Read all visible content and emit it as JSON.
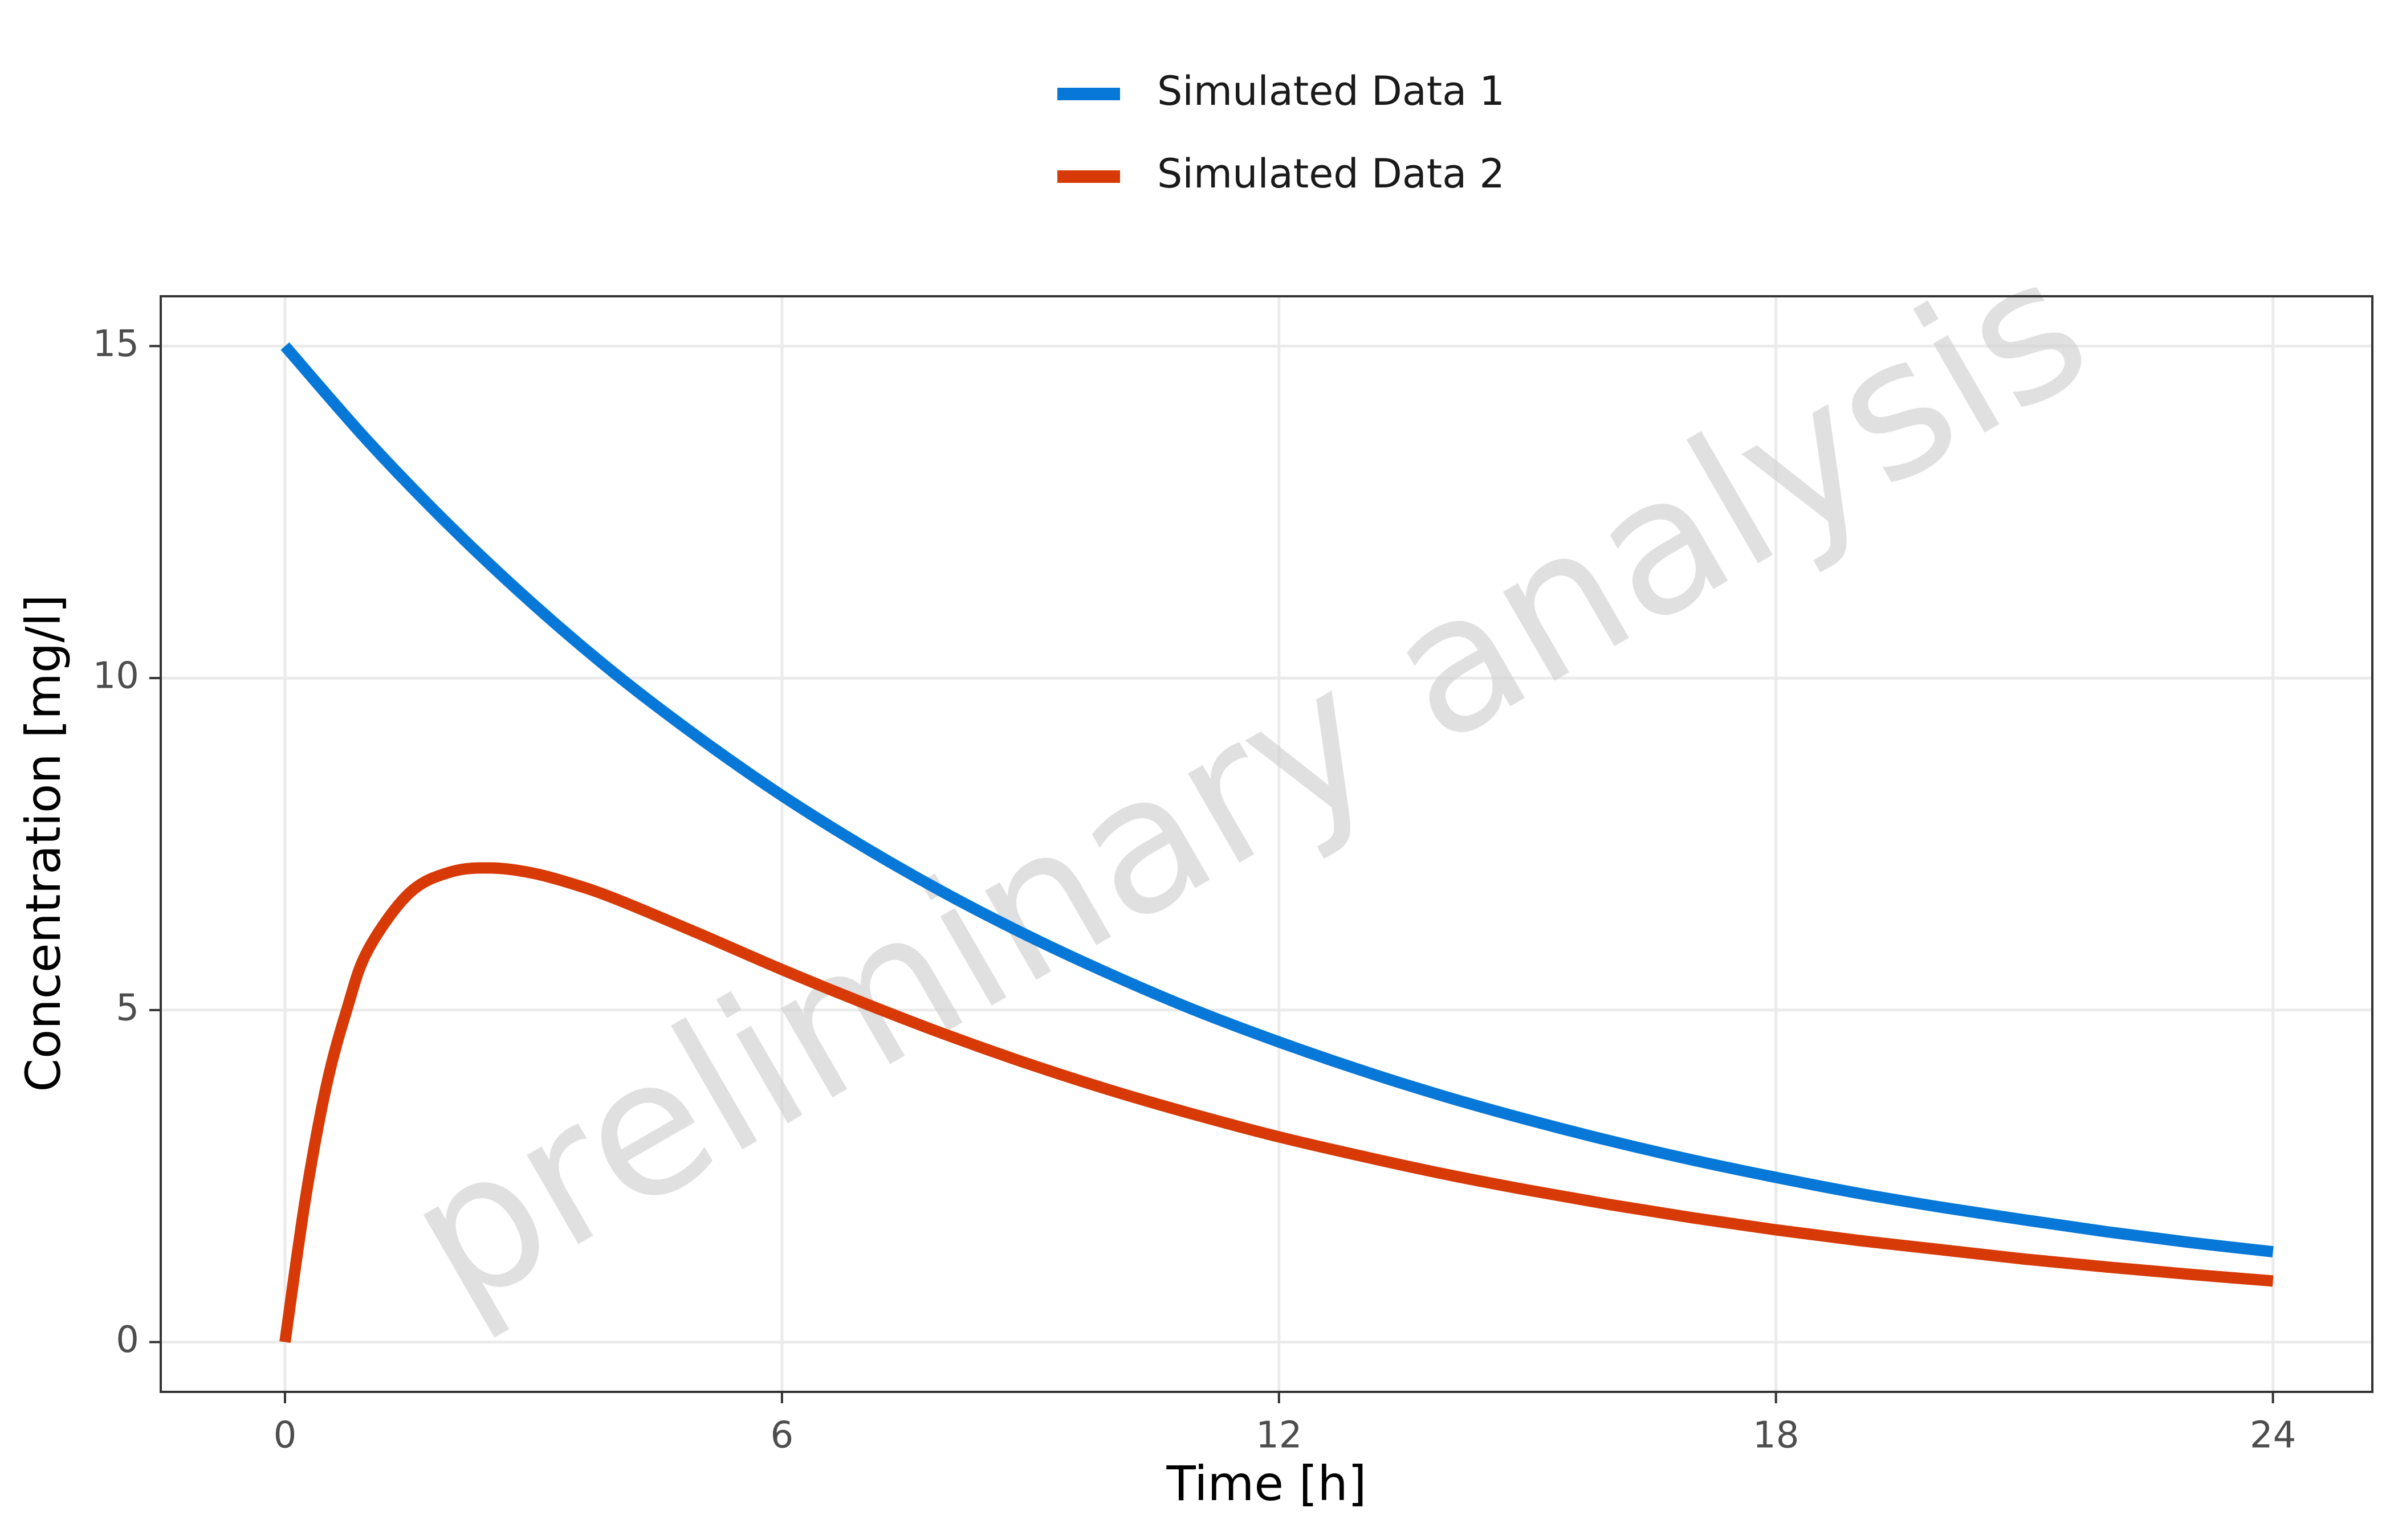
{
  "chart_data": {
    "type": "line",
    "xlabel": "Time [h]",
    "ylabel": "Concentration [mg/l]",
    "xlim": [
      -1.5,
      25.2
    ],
    "ylim": [
      -0.75,
      15.75
    ],
    "xticks": [
      0,
      6,
      12,
      18,
      24
    ],
    "yticks": [
      0,
      5,
      10,
      15
    ],
    "x_tick_labels": [
      "0",
      "6",
      "12",
      "18",
      "24"
    ],
    "y_tick_labels": [
      "0",
      "5",
      "10",
      "15"
    ],
    "grid": true,
    "legend_position": "top",
    "watermark": "preliminary analysis",
    "series": [
      {
        "name": "Simulated Data 1",
        "color": "#0778d8",
        "x": [
          0,
          1,
          2,
          3,
          4,
          5,
          6,
          7,
          8,
          9,
          10,
          11,
          12,
          13,
          14,
          15,
          16,
          17,
          18,
          19,
          20,
          21,
          22,
          23,
          24
        ],
        "y": [
          15.0,
          13.57,
          12.28,
          11.11,
          10.05,
          9.1,
          8.23,
          7.45,
          6.74,
          6.1,
          5.52,
          4.99,
          4.52,
          4.09,
          3.7,
          3.35,
          3.03,
          2.74,
          2.48,
          2.24,
          2.03,
          1.84,
          1.66,
          1.5,
          1.36
        ]
      },
      {
        "name": "Simulated Data 2",
        "color": "#d83a07",
        "x": [
          0,
          0.25,
          0.5,
          0.75,
          1,
          1.5,
          2,
          2.5,
          3,
          3.5,
          4,
          5,
          6,
          7,
          8,
          9,
          10,
          11,
          12,
          13,
          14,
          15,
          16,
          17,
          18,
          19,
          20,
          21,
          22,
          23,
          24
        ],
        "y": [
          0,
          2.18,
          3.86,
          5.02,
          5.9,
          6.76,
          7.08,
          7.14,
          7.06,
          6.89,
          6.67,
          6.15,
          5.61,
          5.1,
          4.62,
          4.18,
          3.78,
          3.42,
          3.09,
          2.8,
          2.53,
          2.29,
          2.07,
          1.87,
          1.69,
          1.53,
          1.39,
          1.25,
          1.13,
          1.02,
          0.92
        ]
      }
    ]
  }
}
